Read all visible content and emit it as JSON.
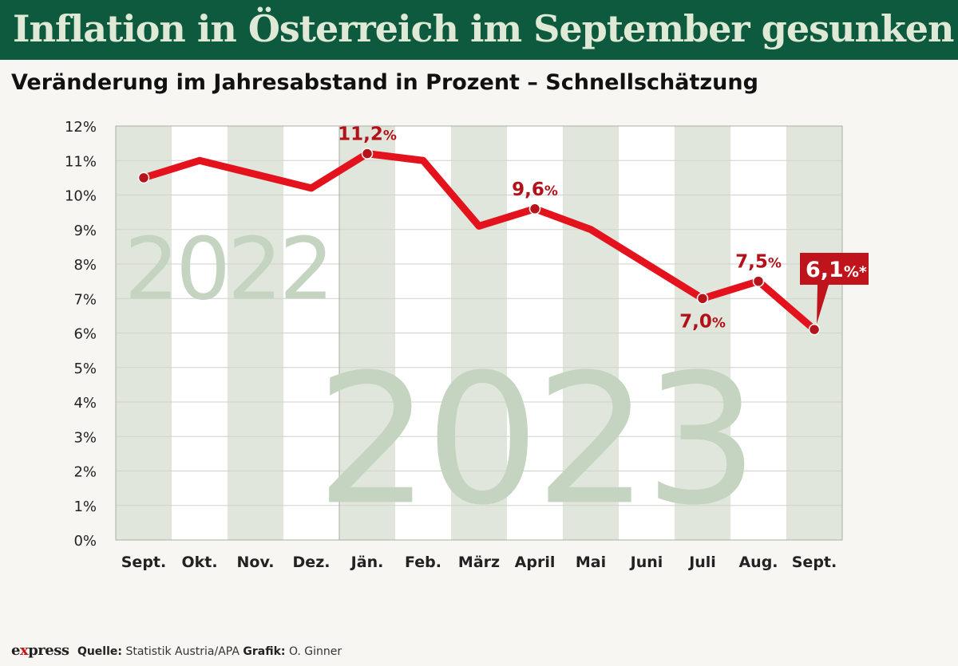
{
  "header": {
    "title": "Inflation in Österreich im September gesunken",
    "subtitle": "Veränderung im Jahresabstand in Prozent – Schnellschätzung"
  },
  "footer": {
    "logo_prefix": "e",
    "logo_mark": "x",
    "logo_suffix": "press",
    "source_label": "Quelle:",
    "source_value": "Statistik Austria/APA",
    "graphic_label": "Grafik:",
    "graphic_value": "O. Ginner"
  },
  "colors": {
    "title_bg": "#0e5a3e",
    "line": "#e3121c",
    "label": "#b3111a",
    "band": "#e1e6dc",
    "year_text": "#c4d4c1"
  },
  "chart_data": {
    "type": "line",
    "categories": [
      "Sept.",
      "Okt.",
      "Nov.",
      "Dez.",
      "Jän.",
      "Feb.",
      "März",
      "April",
      "Mai",
      "Juni",
      "Juli",
      "Aug.",
      "Sept."
    ],
    "values": [
      10.5,
      11.0,
      10.6,
      10.2,
      11.2,
      11.0,
      9.1,
      9.6,
      9.0,
      8.0,
      7.0,
      7.5,
      6.1
    ],
    "ylim": [
      0,
      12
    ],
    "yticks": [
      "0%",
      "1%",
      "2%",
      "3%",
      "4%",
      "5%",
      "6%",
      "7%",
      "8%",
      "9%",
      "10%",
      "11%",
      "12%"
    ],
    "year_labels": [
      "2022",
      "2023"
    ],
    "annotations": [
      {
        "index": 4,
        "text": "11,2",
        "unit": "%",
        "position": "above"
      },
      {
        "index": 7,
        "text": "9,6",
        "unit": "%",
        "position": "above"
      },
      {
        "index": 10,
        "text": "7,0",
        "unit": "%",
        "position": "below"
      },
      {
        "index": 11,
        "text": "7,5",
        "unit": "%",
        "position": "above"
      },
      {
        "index": 12,
        "text": "6,1",
        "unit": "%*",
        "position": "callout"
      }
    ],
    "grid": true,
    "alternating_column_bands": true
  }
}
